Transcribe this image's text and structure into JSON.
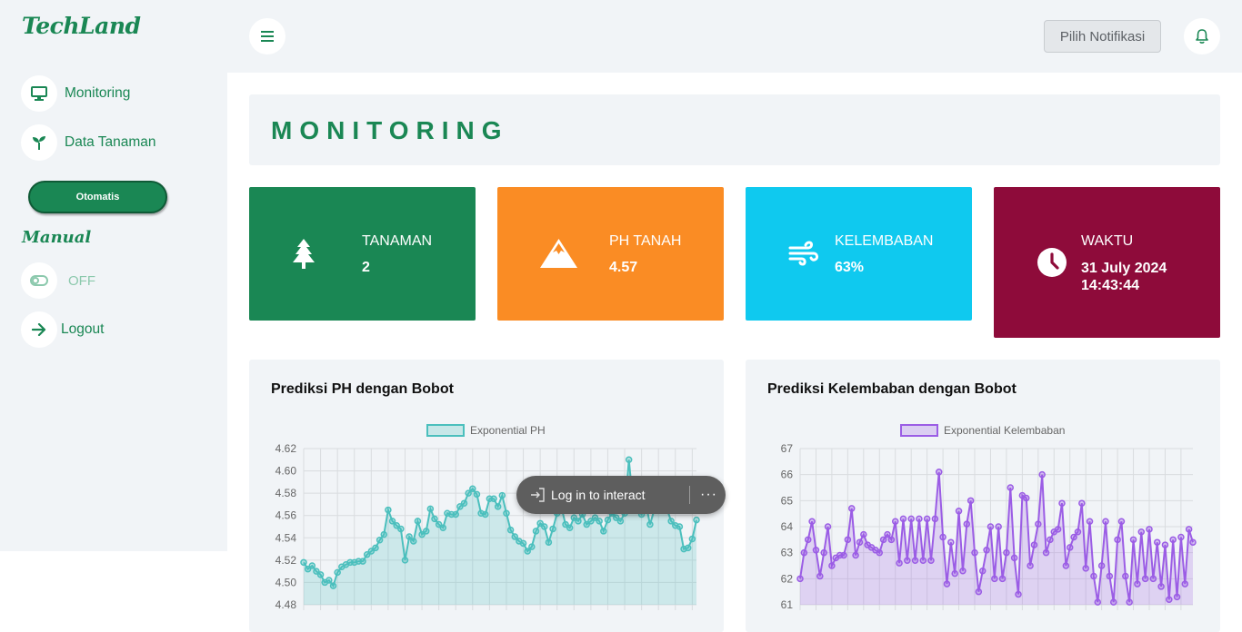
{
  "app": {
    "name": "TechLand"
  },
  "sidebar": {
    "items": [
      {
        "label": "Monitoring",
        "icon": "monitor-icon"
      },
      {
        "label": "Data Tanaman",
        "icon": "seedling-icon"
      }
    ],
    "auto_button": "Otomatis",
    "manual_title": "Manual",
    "toggle_state": "OFF",
    "logout": "Logout"
  },
  "topbar": {
    "notif_select": "Pilih Notifikasi"
  },
  "page": {
    "title": "MONITORING"
  },
  "stats": [
    {
      "label": "TANAMAN",
      "value": "2",
      "color": "#1a8754",
      "icon": "tree-icon"
    },
    {
      "label": "PH TANAH",
      "value": "4.57",
      "color": "#fa8c24",
      "icon": "mountain-icon"
    },
    {
      "label": "KELEMBABAN",
      "value": "63%",
      "color": "#0fc9ef",
      "icon": "wind-icon"
    },
    {
      "label": "WAKTU",
      "date": "31 July 2024",
      "time": "14:43:44",
      "color": "#8e0b3a",
      "icon": "clock-icon"
    }
  ],
  "overlay": {
    "login": "Log in to interact",
    "more": "···"
  },
  "chart_data": [
    {
      "type": "area",
      "title": "Prediksi PH dengan Bobot",
      "series": [
        {
          "name": "Exponential PH",
          "color": "#4bbfbd",
          "values": [
            4.518,
            4.512,
            4.515,
            4.51,
            4.507,
            4.5,
            4.502,
            4.497,
            4.509,
            4.514,
            4.516,
            4.518,
            4.518,
            4.519,
            4.519,
            4.525,
            4.528,
            4.531,
            4.538,
            4.543,
            4.565,
            4.555,
            4.551,
            4.548,
            4.52,
            4.541,
            4.537,
            4.555,
            4.543,
            4.546,
            4.566,
            4.557,
            4.552,
            4.549,
            4.562,
            4.561,
            4.561,
            4.568,
            4.571,
            4.58,
            4.584,
            4.579,
            4.562,
            4.561,
            4.575,
            4.575,
            4.568,
            4.578,
            4.562,
            4.547,
            4.541,
            4.537,
            4.535,
            4.528,
            4.532,
            4.546,
            4.553,
            4.55,
            4.536,
            4.548,
            4.562,
            4.568,
            4.552,
            4.549,
            4.558,
            4.555,
            4.561,
            4.552,
            4.555,
            4.558,
            4.555,
            4.546,
            4.556,
            4.562,
            4.558,
            4.555,
            4.562,
            4.61,
            4.57,
            4.566,
            4.561,
            4.571,
            4.552,
            4.565,
            4.57,
            4.575,
            4.566,
            4.555,
            4.551,
            4.55,
            4.53,
            4.531,
            4.539,
            4.556
          ]
        }
      ],
      "ylim": [
        4.48,
        4.62
      ],
      "yticks": [
        "4.62",
        "4.60",
        "4.58",
        "4.56",
        "4.54",
        "4.52",
        "4.50",
        "4.48"
      ],
      "grid": true,
      "legend": "top"
    },
    {
      "type": "line",
      "title": "Prediksi Kelembaban dengan Bobot",
      "series": [
        {
          "name": "Exponential Kelembaban",
          "color": "#9b5de5",
          "values": [
            62.0,
            63.0,
            63.5,
            64.2,
            63.1,
            62.1,
            63.0,
            64.0,
            62.5,
            62.8,
            62.9,
            62.9,
            63.5,
            64.7,
            62.9,
            63.4,
            63.7,
            63.3,
            63.2,
            63.1,
            63.0,
            63.5,
            63.7,
            63.5,
            64.2,
            62.6,
            64.3,
            62.7,
            64.3,
            62.7,
            64.3,
            62.7,
            64.3,
            62.7,
            64.3,
            66.1,
            63.6,
            61.8,
            63.4,
            62.2,
            64.6,
            62.3,
            64.1,
            65.0,
            63.0,
            61.5,
            62.3,
            63.1,
            64.0,
            62.0,
            64.0,
            62.0,
            63.0,
            65.5,
            62.8,
            61.4,
            65.2,
            65.1,
            62.5,
            63.3,
            64.1,
            66.0,
            63.0,
            63.5,
            63.8,
            63.9,
            64.9,
            62.5,
            63.2,
            63.6,
            63.8,
            64.9,
            62.4,
            64.2,
            62.1,
            61.1,
            62.5,
            64.2,
            62.1,
            61.1,
            63.5,
            64.2,
            62.1,
            61.1,
            63.5,
            61.8,
            63.8,
            62.0,
            63.9,
            62.0,
            63.4,
            61.7,
            63.3,
            61.2,
            63.5,
            61.3,
            63.6,
            61.8,
            63.9,
            63.4
          ]
        }
      ],
      "ylim": [
        61,
        67
      ],
      "yticks": [
        "67",
        "66",
        "65",
        "64",
        "63",
        "62",
        "61"
      ],
      "grid": true,
      "legend": "top"
    }
  ]
}
